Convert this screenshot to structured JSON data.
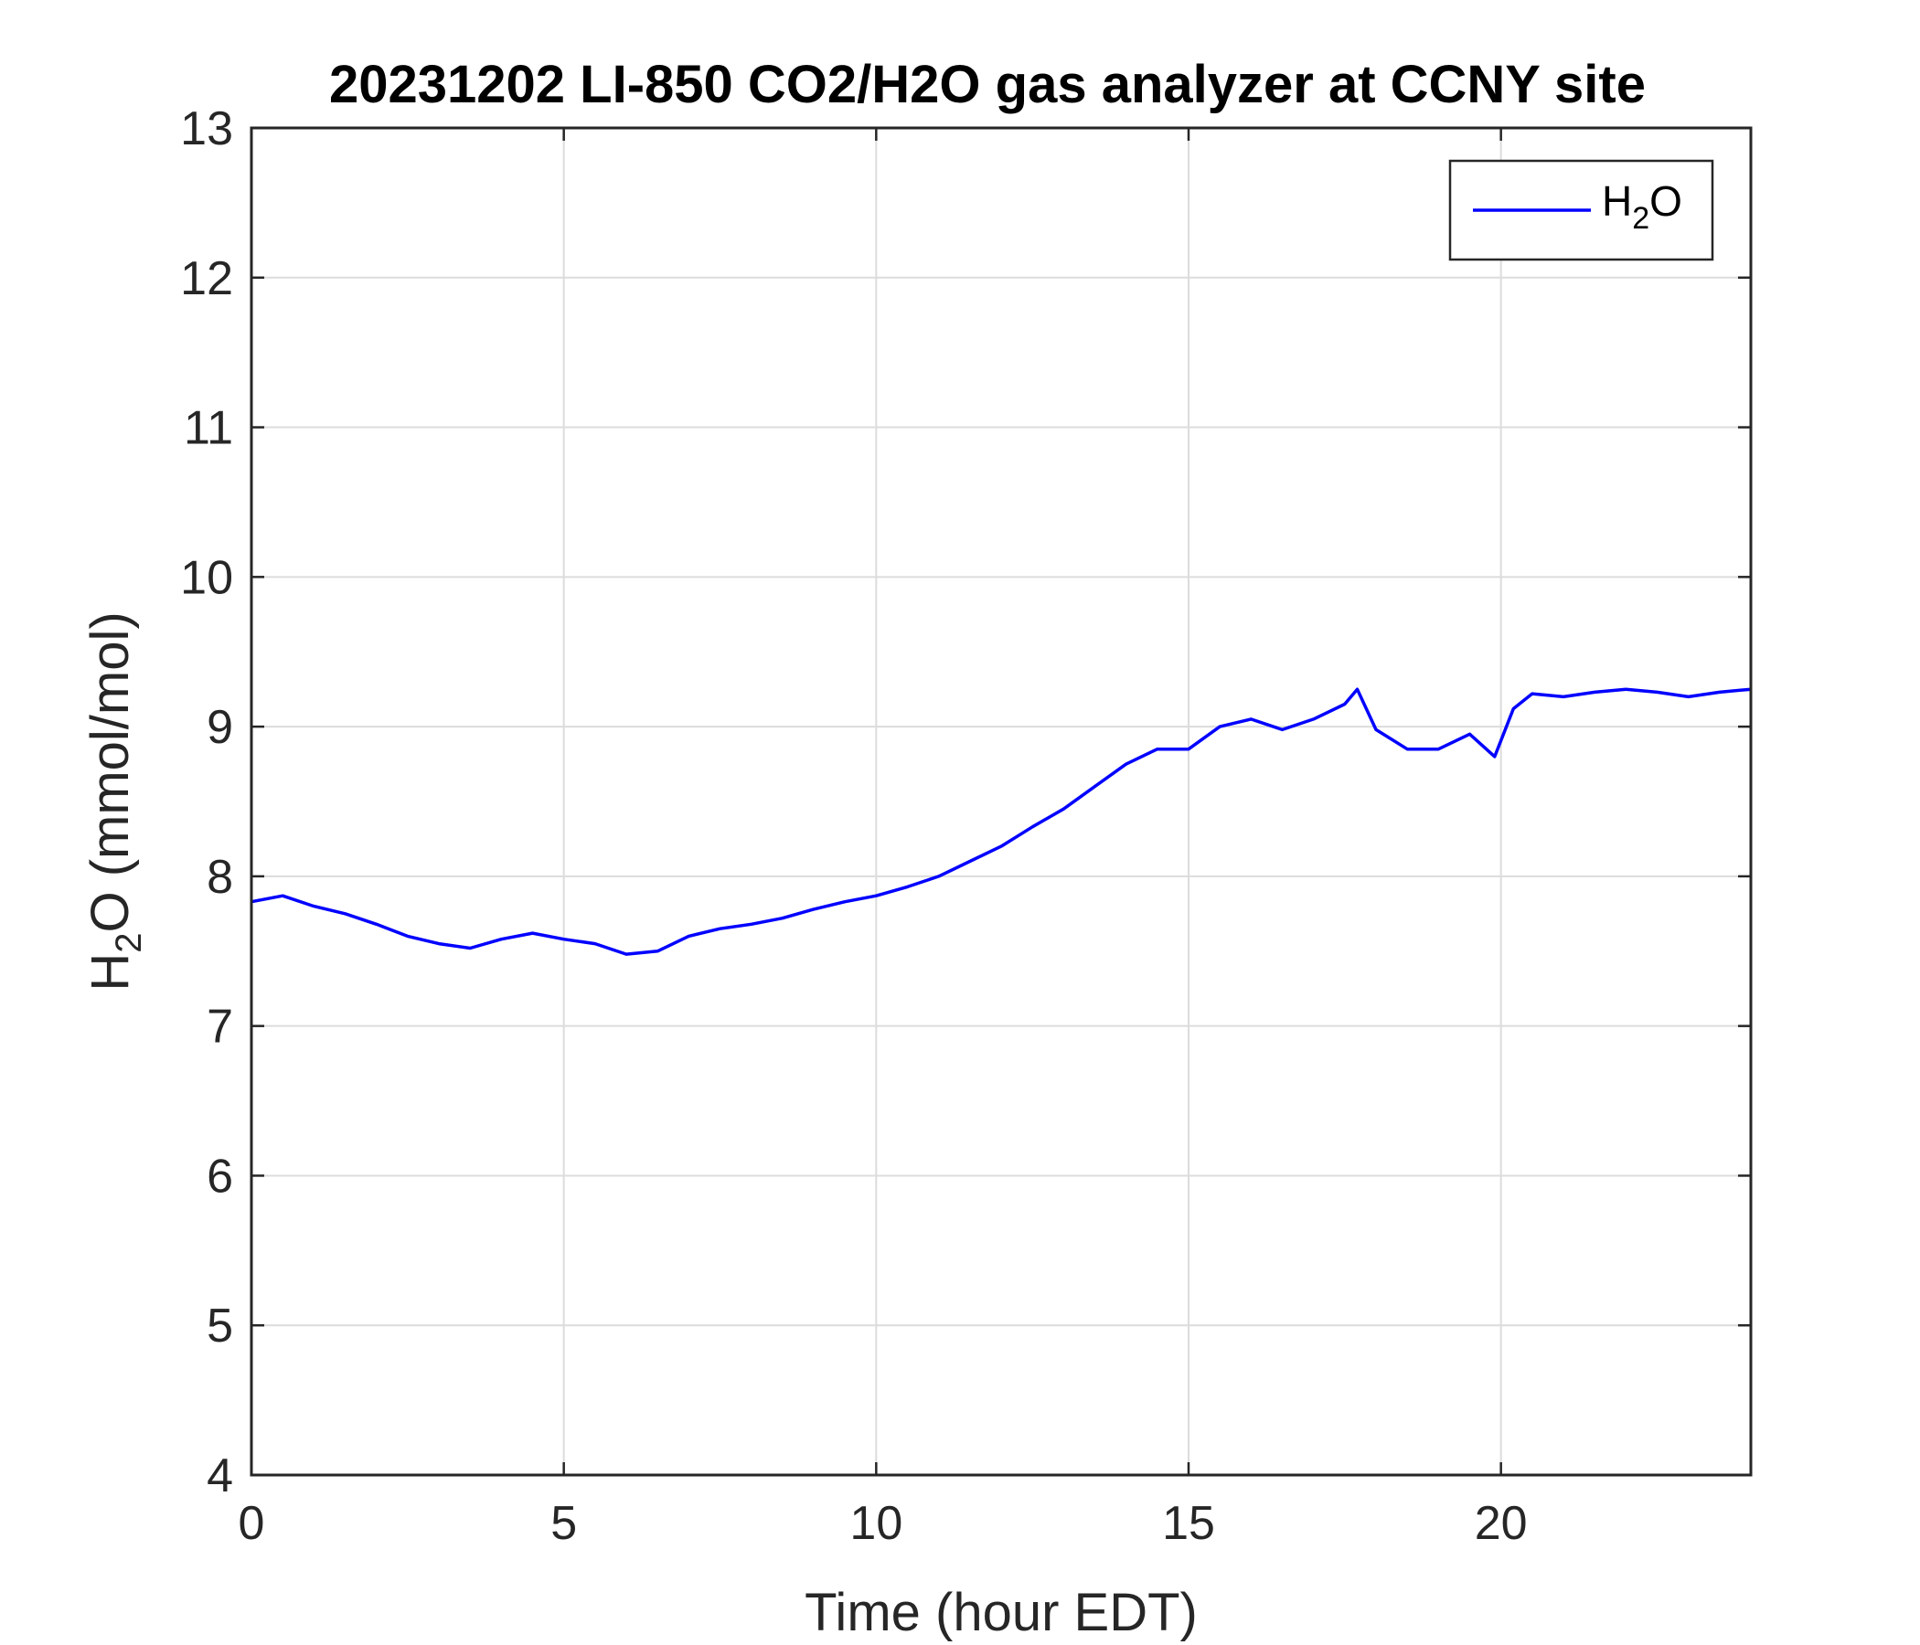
{
  "chart_data": {
    "type": "line",
    "title": "20231202 LI-850 CO2/H2O gas analyzer at CCNY site",
    "xlabel": "Time (hour EDT)",
    "ylabel": "H₂O (mmol/mol)",
    "xlim": [
      0,
      24
    ],
    "ylim": [
      4,
      13
    ],
    "xticks": [
      0,
      5,
      10,
      15,
      20
    ],
    "yticks": [
      4,
      5,
      6,
      7,
      8,
      9,
      10,
      11,
      12,
      13
    ],
    "grid": true,
    "legend": {
      "position": "top-right",
      "entries": [
        "H₂O"
      ]
    },
    "series": [
      {
        "name": "H₂O",
        "color": "#0000ff",
        "x": [
          0,
          0.5,
          1,
          1.5,
          2,
          2.5,
          3,
          3.5,
          4,
          4.5,
          5,
          5.5,
          6,
          6.5,
          7,
          7.5,
          8,
          8.5,
          9,
          9.5,
          10,
          10.5,
          11,
          11.5,
          12,
          12.5,
          13,
          13.5,
          14,
          14.5,
          15,
          15.5,
          16,
          16.5,
          17,
          17.5,
          17.7,
          18,
          18.5,
          19,
          19.5,
          19.9,
          20.2,
          20.5,
          21,
          21.5,
          22,
          22.5,
          23,
          23.5,
          24
        ],
        "y": [
          7.83,
          7.87,
          7.8,
          7.75,
          7.68,
          7.6,
          7.55,
          7.52,
          7.58,
          7.62,
          7.58,
          7.55,
          7.48,
          7.5,
          7.6,
          7.65,
          7.68,
          7.72,
          7.78,
          7.83,
          7.87,
          7.93,
          8.0,
          8.1,
          8.2,
          8.33,
          8.45,
          8.6,
          8.75,
          8.85,
          8.85,
          9.0,
          9.05,
          8.98,
          9.05,
          9.15,
          9.25,
          8.98,
          8.85,
          8.85,
          8.95,
          8.8,
          9.12,
          9.22,
          9.2,
          9.23,
          9.25,
          9.23,
          9.2,
          9.23,
          9.25
        ]
      }
    ]
  }
}
